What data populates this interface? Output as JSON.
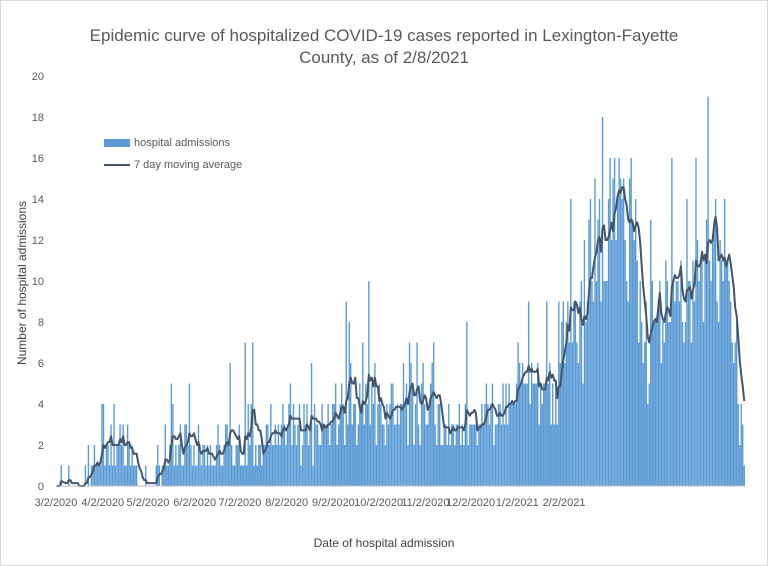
{
  "chart_data": {
    "type": "bar",
    "title_line1": "Epidemic curve of hospitalized COVID-19 cases reported in Lexington-Fayette",
    "title_line2": "County, as of 2/8/2021",
    "xlabel": "Date of hospital admission",
    "ylabel": "Number of hospital admissions",
    "ylim": [
      0,
      20
    ],
    "y_ticks": [
      "0",
      "2",
      "4",
      "6",
      "8",
      "10",
      "12",
      "14",
      "16",
      "18",
      "20"
    ],
    "x_ticks": [
      "3/2/2020",
      "4/2/2020",
      "5/2/2020",
      "6/2/2020",
      "7/2/2020",
      "8/2/2020",
      "9/2/2020",
      "10/2/2020",
      "11/2/2020",
      "12/2/2020",
      "1/2/2021",
      "2/2/2021"
    ],
    "start_date": "3/2/2020",
    "end_date": "2/8/2021",
    "legend": {
      "position": "top-left",
      "entries": [
        "hospital admissions",
        "7 day moving average"
      ]
    },
    "series": [
      {
        "name": "hospital admissions",
        "kind": "bar",
        "color": "#5b9bd5",
        "values": [
          0,
          0,
          0,
          1,
          0,
          0,
          0,
          0,
          1,
          0,
          0,
          0,
          0,
          0,
          0,
          0,
          0,
          0,
          0,
          1,
          0,
          2,
          0,
          1,
          1,
          2,
          1,
          1,
          1,
          1,
          4,
          4,
          1,
          2,
          2,
          1,
          3,
          1,
          4,
          1,
          2,
          2,
          3,
          2,
          3,
          1,
          1,
          3,
          2,
          1,
          2,
          1,
          1,
          1,
          0,
          0,
          0,
          0,
          0,
          1,
          0,
          0,
          0,
          0,
          0,
          0,
          1,
          2,
          1,
          0,
          1,
          1,
          3,
          1,
          1,
          2,
          5,
          4,
          1,
          2,
          1,
          2,
          3,
          1,
          1,
          3,
          3,
          2,
          5,
          2,
          1,
          2,
          1,
          1,
          3,
          2,
          1,
          2,
          2,
          1,
          2,
          1,
          2,
          1,
          1,
          1,
          2,
          3,
          2,
          1,
          1,
          2,
          3,
          3,
          2,
          6,
          2,
          1,
          1,
          2,
          2,
          3,
          1,
          1,
          1,
          7,
          1,
          4,
          2,
          4,
          7,
          1,
          2,
          1,
          2,
          2,
          1,
          2,
          2,
          3,
          3,
          2,
          4,
          2,
          2,
          3,
          2,
          3,
          2,
          3,
          4,
          3,
          2,
          3,
          4,
          5,
          2,
          4,
          3,
          2,
          3,
          4,
          1,
          2,
          4,
          3,
          4,
          2,
          3,
          6,
          1,
          4,
          3,
          3,
          2,
          2,
          4,
          3,
          3,
          3,
          4,
          2,
          3,
          4,
          4,
          5,
          2,
          3,
          4,
          5,
          4,
          2,
          9,
          3,
          8,
          6,
          3,
          4,
          4,
          2,
          3,
          5,
          4,
          7,
          3,
          5,
          4,
          10,
          3,
          5,
          4,
          6,
          2,
          4,
          5,
          4,
          3,
          3,
          2,
          4,
          3,
          4,
          5,
          5,
          3,
          3,
          4,
          3,
          4,
          4,
          6,
          4,
          5,
          2,
          7,
          6,
          5,
          2,
          4,
          7,
          3,
          2,
          5,
          6,
          4,
          3,
          3,
          4,
          5,
          6,
          7,
          3,
          2,
          4,
          4,
          2,
          2,
          3,
          3,
          2,
          4,
          2,
          3,
          3,
          2,
          3,
          3,
          4,
          2,
          3,
          2,
          4,
          8,
          2,
          3,
          3,
          3,
          3,
          3,
          2,
          3,
          3,
          4,
          3,
          4,
          5,
          4,
          3,
          4,
          5,
          2,
          3,
          3,
          4,
          4,
          3,
          5,
          3,
          5,
          3,
          5,
          4,
          4,
          4,
          4,
          5,
          7,
          6,
          5,
          6,
          5,
          5,
          5,
          9,
          4,
          6,
          5,
          5,
          5,
          6,
          3,
          5,
          4,
          5,
          5,
          9,
          5,
          6,
          3,
          5,
          3,
          5,
          3,
          9,
          6,
          8,
          9,
          6,
          8,
          9,
          7,
          14,
          7,
          9,
          9,
          7,
          6,
          9,
          10,
          5,
          12,
          8,
          9,
          13,
          14,
          10,
          9,
          15,
          10,
          13,
          14,
          9,
          18,
          10,
          10,
          10,
          14,
          16,
          12,
          15,
          16,
          12,
          14,
          16,
          15,
          14,
          15,
          12,
          10,
          9,
          15,
          16,
          13,
          12,
          14,
          11,
          7,
          10,
          8,
          6,
          7,
          9,
          4,
          5,
          13,
          10,
          8,
          8,
          8,
          9,
          10,
          6,
          8,
          7,
          11,
          10,
          8,
          8,
          16,
          10,
          9,
          10,
          10,
          9,
          11,
          8,
          7,
          8,
          14,
          10,
          10,
          7,
          11,
          9,
          16,
          12,
          10,
          11,
          11,
          8,
          11,
          13,
          19,
          11,
          10,
          12,
          13,
          14,
          9,
          8,
          12,
          11,
          10,
          14,
          11,
          11,
          10,
          9,
          7,
          6,
          7,
          8,
          4,
          2,
          4,
          3,
          1
        ]
      },
      {
        "name": "7 day moving average",
        "kind": "line",
        "color": "#44546a",
        "window": 7
      }
    ]
  }
}
